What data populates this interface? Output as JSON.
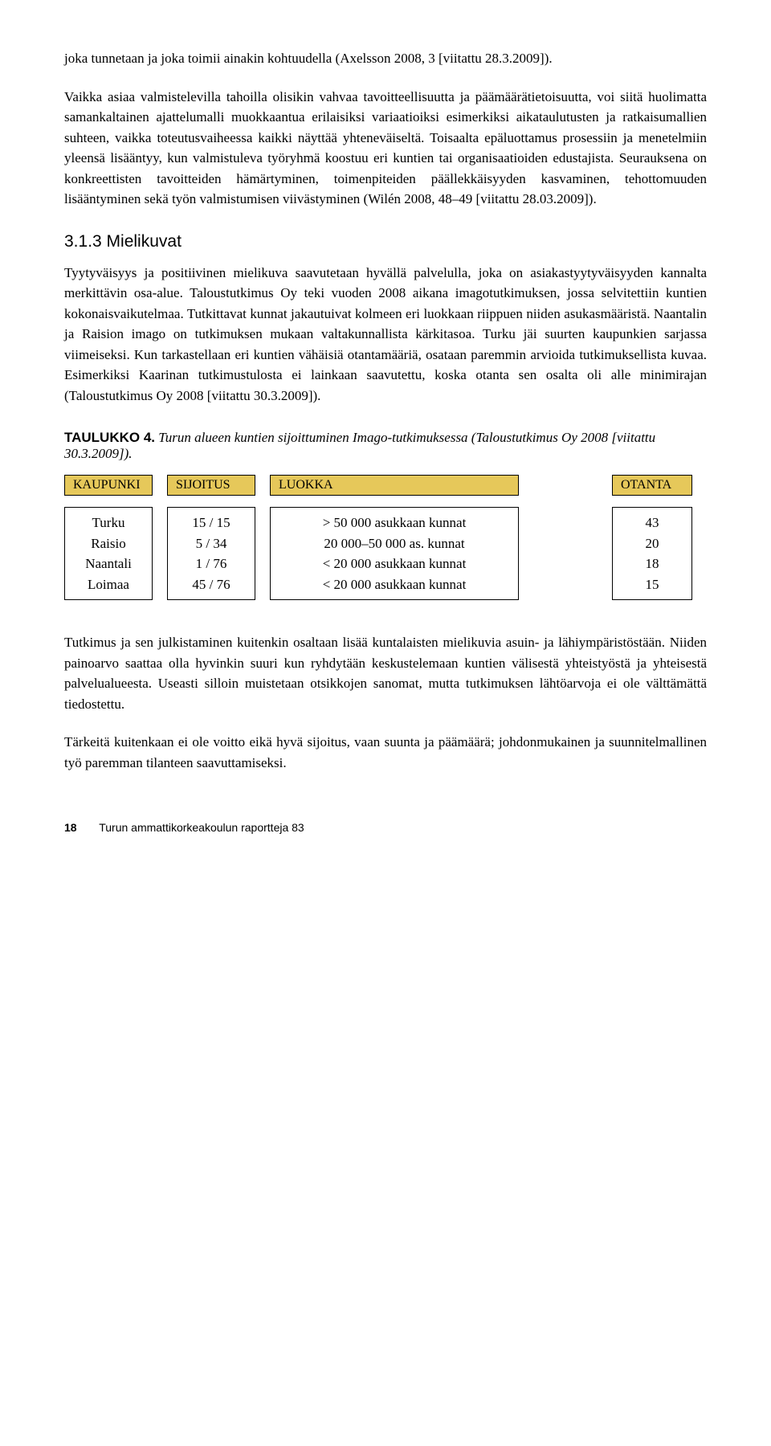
{
  "para1": "joka tunnetaan ja joka toimii ainakin kohtuudella (Axelsson 2008, 3 [viitattu 28.3.2009]).",
  "para2": "Vaikka asiaa valmistelevilla tahoilla olisikin vahvaa tavoitteellisuutta ja päämäärätietoisuutta, voi siitä huolimatta samankaltainen ajattelumalli muokkaantua erilaisiksi variaatioiksi esimerkiksi aikataulutusten ja ratkaisumallien suhteen, vaikka toteutusvaiheessa kaikki näyttää yhteneväiseltä. Toisaalta epäluottamus prosessiin ja menetelmiin yleensä lisääntyy, kun valmistuleva työryhmä koostuu eri kuntien tai organisaatioiden edustajista. Seurauksena on konkreettisten tavoitteiden hämärtyminen, toimenpiteiden päällekkäisyyden kasvaminen, tehottomuuden lisääntyminen sekä työn valmistumisen viivästyminen (Wilén 2008, 48–49 [viitattu 28.03.2009]).",
  "heading": "3.1.3 Mielikuvat",
  "para3": "Tyytyväisyys ja positiivinen mielikuva saavutetaan hyvällä palvelulla, joka on asiakastyytyväisyyden kannalta merkittävin osa-alue. Taloustutkimus Oy teki vuoden 2008 aikana imagotutkimuksen, jossa selvitettiin kuntien kokonaisvaikutelmaa. Tutkittavat kunnat jakautuivat kolmeen eri luokkaan riippuen niiden asukasmääristä. Naantalin ja Raision imago on tutkimuksen mukaan valtakunnallista kärkitasoa. Turku jäi suurten kaupunkien sarjassa viimeiseksi. Kun tarkastellaan eri kuntien vähäisiä otantamääriä, osataan paremmin arvioida tutkimuksellista kuvaa. Esimerkiksi Kaarinan tutkimustulosta ei lainkaan saavutettu, koska otanta sen osalta oli alle minimirajan (Taloustutkimus Oy 2008 [viitattu 30.3.2009]).",
  "table": {
    "caption_bold": "TAULUKKO 4.",
    "caption_italic": "Turun alueen kuntien sijoittuminen Imago-tutkimuksessa (Taloustutkimus Oy 2008 [viitattu 30.3.2009]).",
    "headers": [
      "KAUPUNKI",
      "SIJOITUS",
      "LUOKKA",
      "OTANTA"
    ],
    "col1": [
      "Turku",
      "Raisio",
      "Naantali",
      "Loimaa"
    ],
    "col2": [
      "15 / 15",
      "5 / 34",
      "1 / 76",
      "45 / 76"
    ],
    "col3": [
      "> 50 000 asukkaan kunnat",
      "20 000–50 000 as. kunnat",
      "< 20 000 asukkaan kunnat",
      "< 20 000 asukkaan kunnat"
    ],
    "col4": [
      "43",
      "20",
      "18",
      "15"
    ]
  },
  "para4": "Tutkimus ja sen julkistaminen kuitenkin osaltaan lisää kuntalaisten mielikuvia asuin- ja lähiympäristöstään. Niiden painoarvo saattaa olla hyvinkin suuri kun ryhdytään keskustelemaan kuntien välisestä yhteistyöstä ja yhteisestä palvelualueesta. Useasti silloin muistetaan otsikkojen sanomat, mutta tutkimuksen lähtöarvoja ei ole välttämättä tiedostettu.",
  "para5": "Tärkeitä kuitenkaan ei ole voitto eikä hyvä sijoitus, vaan suunta ja päämäärä; johdonmukainen ja suunnitelmallinen työ paremman tilanteen saavuttamiseksi.",
  "footer": {
    "page": "18",
    "text": "Turun ammattikorkeakoulun raportteja 83"
  }
}
